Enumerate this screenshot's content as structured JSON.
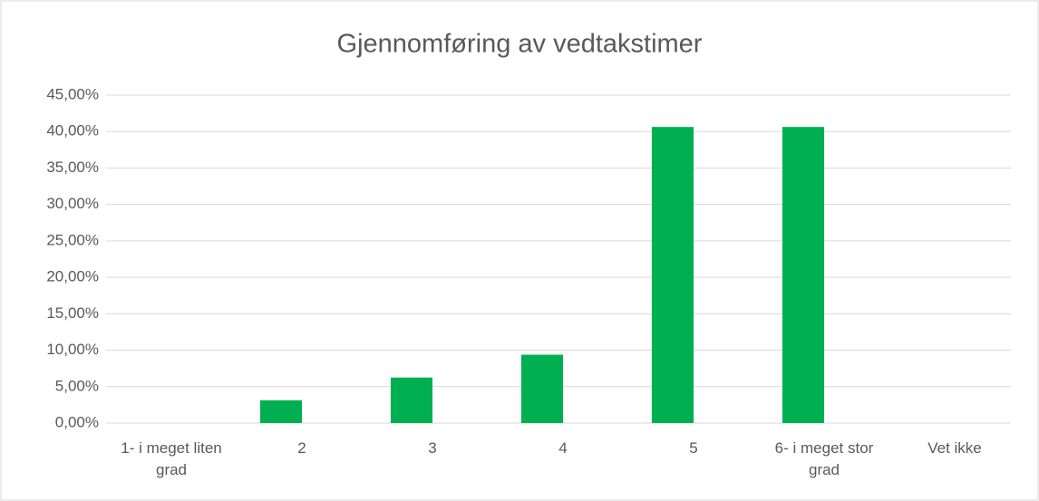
{
  "chart_data": {
    "type": "bar",
    "title": "Gjennomføring av vedtakstimer",
    "categories": [
      "1- i meget liten grad",
      "2",
      "3",
      "4",
      "5",
      "6- i meget stor grad",
      "Vet ikke"
    ],
    "values": [
      0,
      3.13,
      6.25,
      9.38,
      40.63,
      40.63,
      0
    ],
    "color": "#00b050",
    "ylim": [
      0,
      45
    ],
    "yticks": [
      {
        "value": 0,
        "label": "0,00%"
      },
      {
        "value": 5,
        "label": "5,00%"
      },
      {
        "value": 10,
        "label": "10,00%"
      },
      {
        "value": 15,
        "label": "15,00%"
      },
      {
        "value": 20,
        "label": "20,00%"
      },
      {
        "value": 25,
        "label": "25,00%"
      },
      {
        "value": 30,
        "label": "30,00%"
      },
      {
        "value": 35,
        "label": "35,00%"
      },
      {
        "value": 40,
        "label": "40,00%"
      },
      {
        "value": 45,
        "label": "45,00%"
      }
    ],
    "grid": true
  }
}
